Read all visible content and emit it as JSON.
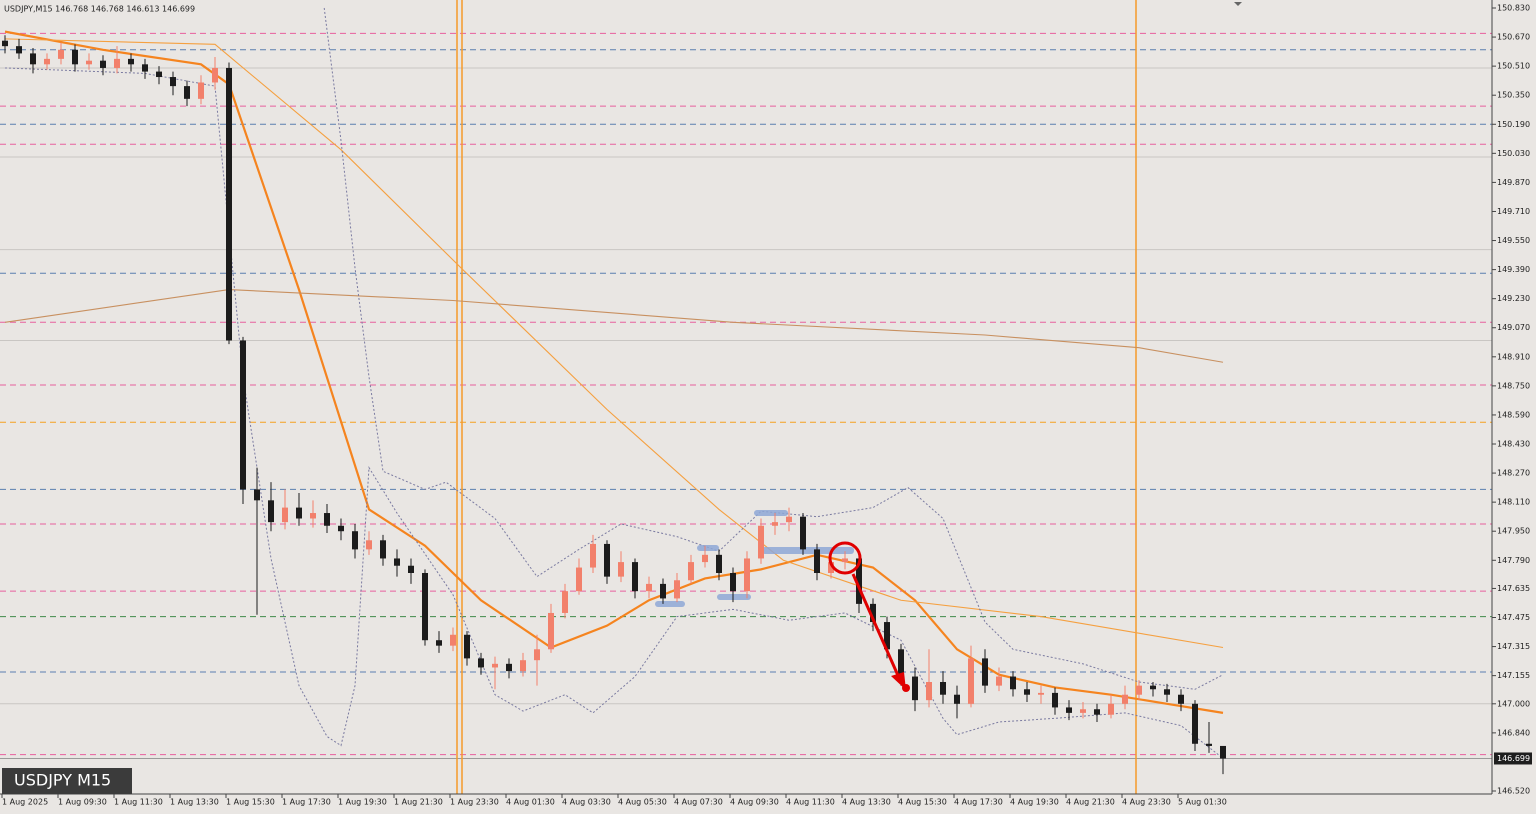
{
  "chart_data": {
    "type": "candlestick",
    "title": "USDJPY,M15  146.768 146.768 146.613 146.699",
    "symbol_label": "USDJPY M15",
    "categories": [
      "1 Aug 2025",
      null,
      null,
      null,
      "1 Aug 09:30",
      null,
      null,
      null,
      "1 Aug 11:30",
      null,
      null,
      null,
      "1 Aug 13:30",
      null,
      null,
      null,
      "1 Aug 15:30",
      null,
      null,
      null,
      "1 Aug 17:30",
      null,
      null,
      null,
      "1 Aug 19:30",
      null,
      null,
      null,
      "1 Aug 21:30",
      null,
      null,
      null,
      "1 Aug 23:30",
      null,
      null,
      null,
      "4 Aug 01:30",
      null,
      null,
      null,
      "4 Aug 03:30",
      null,
      null,
      null,
      "4 Aug 05:30",
      null,
      null,
      null,
      "4 Aug 07:30",
      null,
      null,
      null,
      "4 Aug 09:30",
      null,
      null,
      null,
      "4 Aug 11:30",
      null,
      null,
      null,
      "4 Aug 13:30",
      null,
      null,
      null,
      "4 Aug 15:30",
      null,
      null,
      null,
      "4 Aug 17:30",
      null,
      null,
      null,
      "4 Aug 19:30",
      null,
      null,
      null,
      "4 Aug 21:30",
      null,
      null,
      null,
      "4 Aug 23:30",
      null,
      null,
      null,
      "5 Aug 01:30",
      null,
      null,
      null
    ],
    "open": [
      150.65,
      150.62,
      150.58,
      150.52,
      150.55,
      150.6,
      150.52,
      150.54,
      150.5,
      150.55,
      150.52,
      150.48,
      150.45,
      150.4,
      150.33,
      150.42,
      150.5,
      149.0,
      148.18,
      148.12,
      148.0,
      148.08,
      148.02,
      148.05,
      147.98,
      147.95,
      147.85,
      147.9,
      147.8,
      147.76,
      147.72,
      147.35,
      147.32,
      147.38,
      147.25,
      147.2,
      147.22,
      147.18,
      147.24,
      147.3,
      147.5,
      147.62,
      147.75,
      147.88,
      147.7,
      147.78,
      147.62,
      147.66,
      147.58,
      147.68,
      147.78,
      147.82,
      147.72,
      147.62,
      147.8,
      147.98,
      148.0,
      148.03,
      147.85,
      147.72,
      147.78,
      147.8,
      147.55,
      147.45,
      147.3,
      147.15,
      147.02,
      147.12,
      147.05,
      147.0,
      147.25,
      147.1,
      147.15,
      147.08,
      147.05,
      147.06,
      146.98,
      146.95,
      146.97,
      146.94,
      147.0,
      147.05,
      147.1,
      147.08,
      147.05,
      147.0,
      146.78,
      146.768
    ],
    "high": [
      150.68,
      150.66,
      150.61,
      150.58,
      150.64,
      150.63,
      150.58,
      150.57,
      150.62,
      150.58,
      150.55,
      150.51,
      150.48,
      150.43,
      150.46,
      150.56,
      150.53,
      149.02,
      148.3,
      148.22,
      148.18,
      148.16,
      148.12,
      148.1,
      148.02,
      147.99,
      147.95,
      147.93,
      147.85,
      147.8,
      147.74,
      147.4,
      147.42,
      147.4,
      147.28,
      147.26,
      147.25,
      147.28,
      147.38,
      147.55,
      147.66,
      147.8,
      147.93,
      147.9,
      147.84,
      147.8,
      147.7,
      147.69,
      147.72,
      147.82,
      147.87,
      147.85,
      147.75,
      147.84,
      148.02,
      148.05,
      148.08,
      148.05,
      147.88,
      147.82,
      147.84,
      147.82,
      147.58,
      147.48,
      147.33,
      147.2,
      147.3,
      147.18,
      147.1,
      147.32,
      147.3,
      147.2,
      147.18,
      147.12,
      147.1,
      147.09,
      147.02,
      147.01,
      147.0,
      147.05,
      147.1,
      147.13,
      147.12,
      147.11,
      147.08,
      147.02,
      146.9,
      146.768
    ],
    "low": [
      150.58,
      150.55,
      150.47,
      150.49,
      150.52,
      150.48,
      150.49,
      150.46,
      150.47,
      150.48,
      150.44,
      150.41,
      150.35,
      150.29,
      150.3,
      150.38,
      148.98,
      148.1,
      147.49,
      147.95,
      147.96,
      147.98,
      147.97,
      147.94,
      147.9,
      147.8,
      147.82,
      147.76,
      147.7,
      147.66,
      147.32,
      147.28,
      147.29,
      147.21,
      147.16,
      147.08,
      147.14,
      147.15,
      147.1,
      147.28,
      147.47,
      147.6,
      147.72,
      147.66,
      147.67,
      147.58,
      147.58,
      147.55,
      147.56,
      147.66,
      147.75,
      147.68,
      147.56,
      147.58,
      147.77,
      147.93,
      147.95,
      147.82,
      147.68,
      147.69,
      147.74,
      147.5,
      147.4,
      147.25,
      147.1,
      146.96,
      146.98,
      147.0,
      146.92,
      146.98,
      147.06,
      147.07,
      147.04,
      147.01,
      147.0,
      146.94,
      146.91,
      146.92,
      146.9,
      146.92,
      146.97,
      147.02,
      147.04,
      147.01,
      146.96,
      146.74,
      146.73,
      146.613
    ],
    "close": [
      150.62,
      150.58,
      150.52,
      150.55,
      150.6,
      150.52,
      150.54,
      150.5,
      150.55,
      150.52,
      150.48,
      150.45,
      150.4,
      150.33,
      150.42,
      150.5,
      149.0,
      148.18,
      148.12,
      148.0,
      148.08,
      148.02,
      148.05,
      147.98,
      147.95,
      147.85,
      147.9,
      147.8,
      147.76,
      147.72,
      147.35,
      147.32,
      147.38,
      147.25,
      147.2,
      147.22,
      147.18,
      147.24,
      147.3,
      147.5,
      147.62,
      147.75,
      147.88,
      147.7,
      147.78,
      147.62,
      147.66,
      147.58,
      147.68,
      147.78,
      147.82,
      147.72,
      147.62,
      147.8,
      147.98,
      148.0,
      148.03,
      147.85,
      147.72,
      147.78,
      147.8,
      147.55,
      147.45,
      147.3,
      147.15,
      147.02,
      147.12,
      147.05,
      147.0,
      147.25,
      147.1,
      147.15,
      147.08,
      147.05,
      147.06,
      146.98,
      146.95,
      146.97,
      146.94,
      147.0,
      147.05,
      147.1,
      147.08,
      147.05,
      147.0,
      146.78,
      146.768,
      146.699
    ],
    "up_color": "#f2806b",
    "down_color": "#1c1c1c",
    "ylim": [
      146.52,
      150.83
    ],
    "yticks": [
      {
        "value": 150.83,
        "label": "150.830"
      },
      {
        "value": 150.67,
        "label": "150.670"
      },
      {
        "value": 150.51,
        "label": "150.510"
      },
      {
        "value": 150.35,
        "label": "150.350"
      },
      {
        "value": 150.19,
        "label": "150.190"
      },
      {
        "value": 150.03,
        "label": "150.030"
      },
      {
        "value": 149.87,
        "label": "149.870"
      },
      {
        "value": 149.71,
        "label": "149.710"
      },
      {
        "value": 149.55,
        "label": "149.550"
      },
      {
        "value": 149.39,
        "label": "149.390"
      },
      {
        "value": 149.23,
        "label": "149.230"
      },
      {
        "value": 149.07,
        "label": "149.070"
      },
      {
        "value": 148.91,
        "label": "148.910"
      },
      {
        "value": 148.75,
        "label": "148.750"
      },
      {
        "value": 148.59,
        "label": "148.590"
      },
      {
        "value": 148.43,
        "label": "148.430"
      },
      {
        "value": 148.27,
        "label": "148.270"
      },
      {
        "value": 148.11,
        "label": "148.110"
      },
      {
        "value": 147.95,
        "label": "147.950"
      },
      {
        "value": 147.79,
        "label": "147.790"
      },
      {
        "value": 147.635,
        "label": "147.635"
      },
      {
        "value": 147.475,
        "label": "147.475"
      },
      {
        "value": 147.315,
        "label": "147.315"
      },
      {
        "value": 147.155,
        "label": "147.155"
      },
      {
        "value": 147,
        "label": "147.000"
      },
      {
        "value": 146.84,
        "label": "146.840"
      },
      {
        "value": 146.52,
        "label": "146.520"
      }
    ],
    "bid": {
      "value": 146.699,
      "label": "146.699"
    },
    "levels": [
      {
        "value": 150.69,
        "color": "#e8609e",
        "dash": true
      },
      {
        "value": 150.29,
        "color": "#e8609e",
        "dash": true
      },
      {
        "value": 150.08,
        "color": "#e8609e",
        "dash": true
      },
      {
        "value": 149.1,
        "color": "#e8609e",
        "dash": true
      },
      {
        "value": 148.755,
        "color": "#e8609e",
        "dash": true
      },
      {
        "value": 147.99,
        "color": "#e8609e",
        "dash": true
      },
      {
        "value": 147.62,
        "color": "#e8609e",
        "dash": true
      },
      {
        "value": 146.72,
        "color": "#e8609e",
        "dash": true
      },
      {
        "value": 150.6,
        "color": "#5b7fb0",
        "dash": true
      },
      {
        "value": 150.19,
        "color": "#5b7fb0",
        "dash": true
      },
      {
        "value": 149.37,
        "color": "#5b7fb0",
        "dash": true
      },
      {
        "value": 148.18,
        "color": "#5b7fb0",
        "dash": true
      },
      {
        "value": 147.175,
        "color": "#5b7fb0",
        "dash": true
      },
      {
        "value": 147.48,
        "color": "#3f8a4a",
        "dash": true
      },
      {
        "value": 148.55,
        "color": "#f5a020",
        "dash": true
      },
      {
        "value": 150.5,
        "color": "#c9c6c3",
        "dash": false
      },
      {
        "value": 150.01,
        "color": "#c9c6c3",
        "dash": false
      },
      {
        "value": 149.5,
        "color": "#c9c6c3",
        "dash": false
      },
      {
        "value": 149.0,
        "color": "#c9c6c3",
        "dash": false
      },
      {
        "value": 147.0,
        "color": "#c9c6c3",
        "dash": false
      }
    ],
    "series": [
      {
        "color": "#f5841f",
        "style": "thick",
        "x": [
          0,
          7,
          14,
          16,
          21,
          26,
          30,
          34,
          39,
          43,
          46,
          50,
          54,
          58,
          62,
          65,
          68,
          71,
          75,
          79,
          83,
          87
        ],
        "values": [
          150.7,
          150.6,
          150.52,
          150.41,
          149.28,
          148.07,
          147.87,
          147.57,
          147.31,
          147.43,
          147.57,
          147.69,
          147.74,
          147.82,
          147.75,
          147.57,
          147.3,
          147.16,
          147.09,
          147.05,
          147.0,
          146.95
        ]
      },
      {
        "color": "#f5a040",
        "style": "thin",
        "x": [
          0,
          15,
          24,
          32.7,
          43,
          51,
          55.6,
          64,
          74,
          87
        ],
        "values": [
          150.66,
          150.63,
          150.05,
          149.39,
          148.62,
          148.07,
          147.79,
          147.57,
          147.48,
          147.31
        ]
      },
      {
        "color": "#c89060",
        "style": "thin",
        "x": [
          0,
          16,
          32,
          52,
          70,
          81,
          87
        ],
        "values": [
          149.1,
          149.28,
          149.22,
          149.1,
          149.03,
          148.96,
          148.88
        ]
      },
      {
        "color": "#7a7aa0",
        "style": "dotted",
        "x": [
          22.8,
          24,
          25,
          26,
          27,
          30,
          31.5,
          35,
          38,
          41,
          44,
          48,
          51,
          54,
          58,
          62,
          64.5,
          67,
          70,
          72,
          77,
          81,
          85,
          87
        ],
        "values": [
          150.83,
          150.1,
          149.4,
          148.8,
          148.28,
          148.18,
          148.22,
          148.02,
          147.7,
          147.85,
          147.99,
          147.92,
          147.84,
          148.06,
          148.03,
          148.08,
          148.19,
          148.02,
          147.45,
          147.3,
          147.22,
          147.12,
          147.08,
          147.16
        ]
      },
      {
        "color": "#7a7aa0",
        "style": "dotted",
        "x": [
          0,
          10,
          15,
          17,
          19,
          21,
          23,
          24,
          25,
          26,
          28,
          32,
          35,
          37,
          40,
          42,
          45,
          48,
          52,
          56,
          60,
          64,
          67,
          68,
          71,
          75,
          80,
          84,
          87
        ],
        "values": [
          150.5,
          150.47,
          150.4,
          148.8,
          147.8,
          147.1,
          146.82,
          146.77,
          147.1,
          148.3,
          148.05,
          147.6,
          147.05,
          146.96,
          147.05,
          146.95,
          147.15,
          147.48,
          147.52,
          147.46,
          147.5,
          147.35,
          146.92,
          146.83,
          146.9,
          146.92,
          146.95,
          146.88,
          146.7
        ]
      }
    ]
  }
}
